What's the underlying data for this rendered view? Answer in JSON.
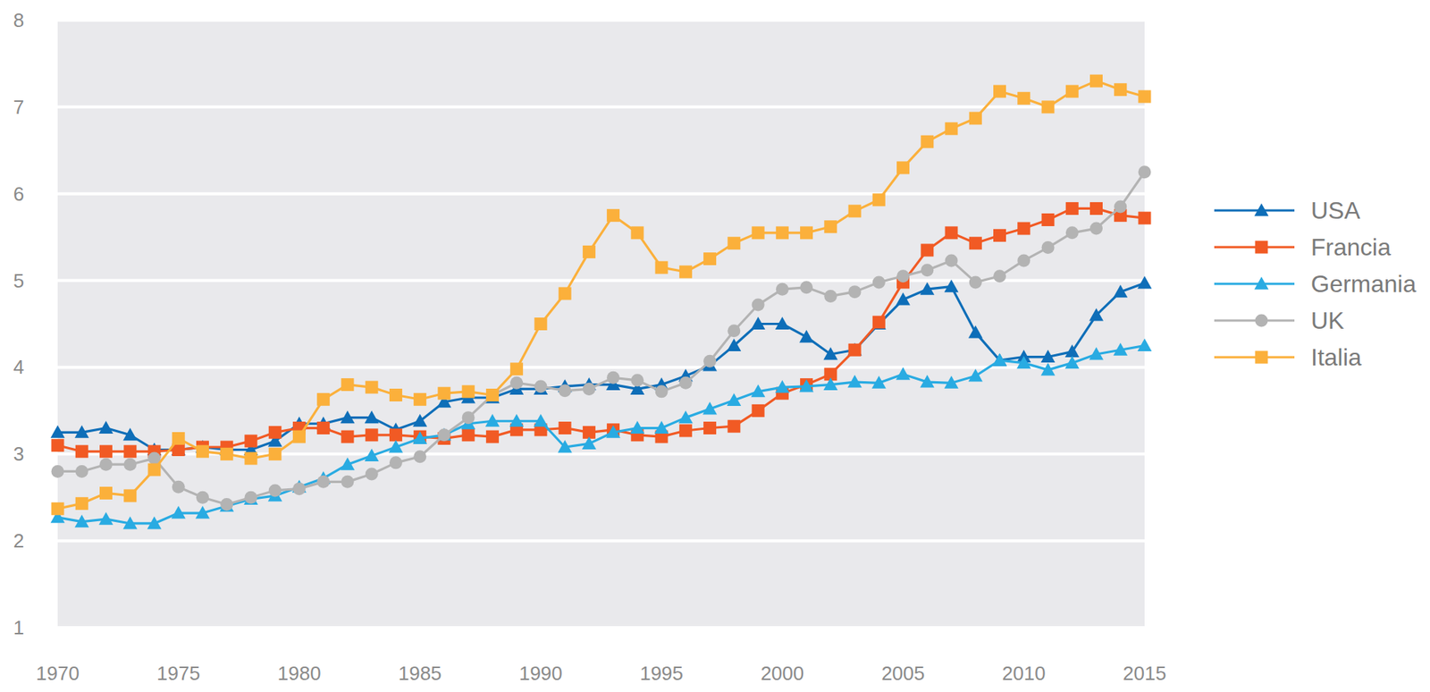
{
  "chart_data": {
    "type": "line",
    "x": [
      1970,
      1971,
      1972,
      1973,
      1974,
      1975,
      1976,
      1977,
      1978,
      1979,
      1980,
      1981,
      1982,
      1983,
      1984,
      1985,
      1986,
      1987,
      1988,
      1989,
      1990,
      1991,
      1992,
      1993,
      1994,
      1995,
      1996,
      1997,
      1998,
      1999,
      2000,
      2001,
      2002,
      2003,
      2004,
      2005,
      2006,
      2007,
      2008,
      2009,
      2010,
      2011,
      2012,
      2013,
      2014,
      2015
    ],
    "xlim": [
      1970,
      2015
    ],
    "xticks": [
      1970,
      1975,
      1980,
      1985,
      1990,
      1995,
      2000,
      2005,
      2010,
      2015
    ],
    "ylim": [
      1,
      8
    ],
    "yticks": [
      1,
      2,
      3,
      4,
      5,
      6,
      7,
      8
    ],
    "grid": true,
    "legend": "right",
    "series": [
      {
        "name": "USA",
        "color": "#0e6eb8",
        "marker": "triangle",
        "values": [
          3.25,
          3.25,
          3.3,
          3.22,
          3.05,
          3.05,
          3.08,
          3.05,
          3.05,
          3.15,
          3.35,
          3.35,
          3.42,
          3.42,
          3.28,
          3.38,
          3.6,
          3.65,
          3.65,
          3.75,
          3.75,
          3.78,
          3.8,
          3.8,
          3.75,
          3.8,
          3.9,
          4.02,
          4.25,
          4.5,
          4.5,
          4.35,
          4.15,
          4.2,
          4.5,
          4.78,
          4.9,
          4.93,
          4.4,
          4.08,
          4.12,
          4.12,
          4.18,
          4.6,
          4.87,
          4.97
        ]
      },
      {
        "name": "Francia",
        "color": "#f15a24",
        "marker": "square",
        "values": [
          3.1,
          3.03,
          3.03,
          3.03,
          3.03,
          3.05,
          3.08,
          3.08,
          3.15,
          3.25,
          3.3,
          3.3,
          3.2,
          3.22,
          3.22,
          3.2,
          3.18,
          3.22,
          3.2,
          3.28,
          3.28,
          3.3,
          3.25,
          3.28,
          3.22,
          3.2,
          3.27,
          3.3,
          3.32,
          3.5,
          3.7,
          3.8,
          3.92,
          4.2,
          4.52,
          4.98,
          5.35,
          5.55,
          5.43,
          5.52,
          5.6,
          5.7,
          5.83,
          5.83,
          5.75,
          5.72
        ]
      },
      {
        "name": "Germania",
        "color": "#29abe2",
        "marker": "triangle",
        "values": [
          2.27,
          2.22,
          2.25,
          2.2,
          2.2,
          2.32,
          2.32,
          2.4,
          2.48,
          2.52,
          2.62,
          2.72,
          2.88,
          2.98,
          3.08,
          3.18,
          3.22,
          3.35,
          3.38,
          3.38,
          3.38,
          3.08,
          3.12,
          3.25,
          3.3,
          3.3,
          3.42,
          3.52,
          3.62,
          3.72,
          3.77,
          3.78,
          3.8,
          3.83,
          3.82,
          3.92,
          3.83,
          3.82,
          3.9,
          4.08,
          4.05,
          3.97,
          4.05,
          4.15,
          4.2,
          4.25
        ]
      },
      {
        "name": "UK",
        "color": "#b3b3b3",
        "marker": "circle",
        "values": [
          2.8,
          2.8,
          2.88,
          2.88,
          2.95,
          2.62,
          2.5,
          2.42,
          2.5,
          2.58,
          2.6,
          2.68,
          2.68,
          2.77,
          2.9,
          2.97,
          3.22,
          3.42,
          3.68,
          3.82,
          3.78,
          3.73,
          3.75,
          3.88,
          3.85,
          3.72,
          3.82,
          4.07,
          4.42,
          4.72,
          4.9,
          4.92,
          4.82,
          4.87,
          4.98,
          5.05,
          5.12,
          5.23,
          4.98,
          5.05,
          5.23,
          5.38,
          5.55,
          5.6,
          5.85,
          6.25
        ]
      },
      {
        "name": "Italia",
        "color": "#fbb03b",
        "marker": "square",
        "values": [
          2.37,
          2.43,
          2.55,
          2.52,
          2.82,
          3.18,
          3.03,
          3.0,
          2.95,
          3.0,
          3.2,
          3.63,
          3.8,
          3.77,
          3.68,
          3.63,
          3.7,
          3.72,
          3.68,
          3.98,
          4.5,
          4.85,
          5.33,
          5.75,
          5.55,
          5.15,
          5.1,
          5.25,
          5.43,
          5.55,
          5.55,
          5.55,
          5.62,
          5.8,
          5.93,
          6.3,
          6.6,
          6.75,
          6.87,
          7.18,
          7.1,
          7.0,
          7.18,
          7.3,
          7.2,
          7.12
        ]
      }
    ]
  }
}
